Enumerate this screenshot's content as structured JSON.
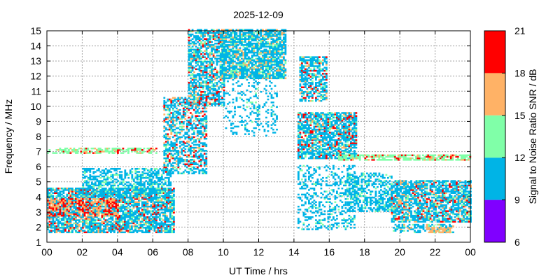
{
  "chart_data": {
    "type": "heatmap",
    "title": "2025-12-09",
    "xlabel": "UT Time / hrs",
    "ylabel": "Frequency / MHz",
    "xlim": [
      0,
      24
    ],
    "ylim": [
      1,
      15
    ],
    "x_ticks": [
      "00",
      "02",
      "04",
      "06",
      "08",
      "10",
      "12",
      "14",
      "16",
      "18",
      "20",
      "22",
      "00"
    ],
    "y_ticks": [
      "1",
      "2",
      "3",
      "4",
      "5",
      "6",
      "7",
      "8",
      "9",
      "10",
      "11",
      "12",
      "13",
      "14",
      "15"
    ],
    "grid": true,
    "colorbar": {
      "label": "Signal to Noise Ratio SNR / dB",
      "ticks": [
        "6",
        "9",
        "12",
        "15",
        "18",
        "21"
      ],
      "bands": [
        {
          "from": 6,
          "to": 9,
          "color": "#8000ff"
        },
        {
          "from": 9,
          "to": 12,
          "color": "#00b4e6"
        },
        {
          "from": 12,
          "to": 15,
          "color": "#80ffa8"
        },
        {
          "from": 15,
          "to": 18,
          "color": "#ffb266"
        },
        {
          "from": 18,
          "to": 21,
          "color": "#ff0000"
        }
      ]
    },
    "regions": [
      {
        "t": [
          0.0,
          7.2
        ],
        "f": [
          1.6,
          4.6
        ],
        "density": 0.78,
        "snr": [
          9,
          21
        ]
      },
      {
        "t": [
          0.0,
          4.0
        ],
        "f": [
          2.7,
          3.9
        ],
        "density": 0.55,
        "snr": [
          16,
          21
        ]
      },
      {
        "t": [
          2.0,
          7.0
        ],
        "f": [
          4.0,
          5.8
        ],
        "density": 0.55,
        "snr": [
          9,
          14
        ]
      },
      {
        "t": [
          0.0,
          6.2
        ],
        "f": [
          6.85,
          7.15
        ],
        "density": 0.6,
        "snr": [
          12,
          21
        ]
      },
      {
        "t": [
          6.6,
          9.0
        ],
        "f": [
          5.5,
          10.5
        ],
        "density": 0.55,
        "snr": [
          9,
          21
        ]
      },
      {
        "t": [
          8.0,
          10.0
        ],
        "f": [
          10.0,
          15.0
        ],
        "density": 0.65,
        "snr": [
          9,
          21
        ]
      },
      {
        "t": [
          9.8,
          13.5
        ],
        "f": [
          11.8,
          15.0
        ],
        "density": 0.8,
        "snr": [
          9,
          18
        ]
      },
      {
        "t": [
          10.0,
          13.0
        ],
        "f": [
          8.0,
          12.0
        ],
        "density": 0.18,
        "snr": [
          9,
          13
        ]
      },
      {
        "t": [
          14.3,
          15.8
        ],
        "f": [
          10.3,
          13.2
        ],
        "density": 0.7,
        "snr": [
          9,
          21
        ]
      },
      {
        "t": [
          14.2,
          17.5
        ],
        "f": [
          6.5,
          9.5
        ],
        "density": 0.75,
        "snr": [
          9,
          21
        ]
      },
      {
        "t": [
          14.2,
          17.4
        ],
        "f": [
          1.8,
          6.0
        ],
        "density": 0.3,
        "snr": [
          9,
          13
        ]
      },
      {
        "t": [
          16.5,
          24.0
        ],
        "f": [
          6.4,
          6.7
        ],
        "density": 0.75,
        "snr": [
          12,
          21
        ]
      },
      {
        "t": [
          17.0,
          19.5
        ],
        "f": [
          3.0,
          5.5
        ],
        "density": 0.5,
        "snr": [
          9,
          14
        ]
      },
      {
        "t": [
          19.5,
          24.0
        ],
        "f": [
          2.3,
          5.0
        ],
        "density": 0.75,
        "snr": [
          9,
          21
        ]
      },
      {
        "t": [
          19.5,
          23.0
        ],
        "f": [
          1.6,
          2.2
        ],
        "density": 0.5,
        "snr": [
          9,
          18
        ]
      },
      {
        "t": [
          21.5,
          22.8
        ],
        "f": [
          1.6,
          2.0
        ],
        "density": 0.6,
        "snr": [
          15,
          18
        ]
      }
    ]
  }
}
